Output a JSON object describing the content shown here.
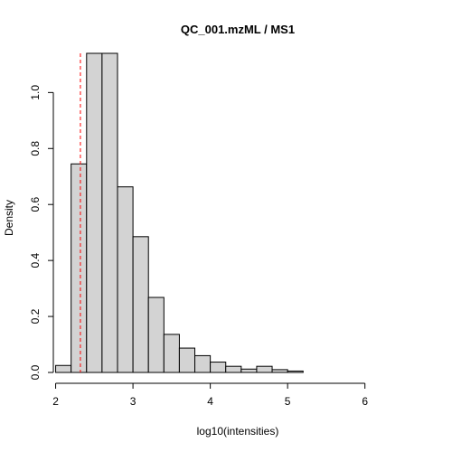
{
  "chart_data": {
    "type": "bar",
    "title": "QC_001.mzML / MS1",
    "xlabel": "log10(intensities)",
    "ylabel": "Density",
    "xlim": [
      1.97,
      6.6
    ],
    "ylim": [
      0,
      1.14
    ],
    "x_ticks": [
      2,
      3,
      4,
      5,
      6
    ],
    "y_ticks": [
      0.0,
      0.2,
      0.4,
      0.6,
      0.8,
      1.0
    ],
    "x_tick_labels": [
      "2",
      "3",
      "4",
      "5",
      "6"
    ],
    "y_tick_labels": [
      "0.0",
      "0.2",
      "0.4",
      "0.6",
      "0.8",
      "1.0"
    ],
    "bin_width": 0.2,
    "bins": [
      {
        "start": 2.0,
        "value": 0.025
      },
      {
        "start": 2.2,
        "value": 0.745
      },
      {
        "start": 2.4,
        "value": 1.14
      },
      {
        "start": 2.6,
        "value": 1.14
      },
      {
        "start": 2.8,
        "value": 0.663
      },
      {
        "start": 3.0,
        "value": 0.485
      },
      {
        "start": 3.2,
        "value": 0.268
      },
      {
        "start": 3.4,
        "value": 0.136
      },
      {
        "start": 3.6,
        "value": 0.087
      },
      {
        "start": 3.8,
        "value": 0.06
      },
      {
        "start": 4.0,
        "value": 0.037
      },
      {
        "start": 4.2,
        "value": 0.022
      },
      {
        "start": 4.4,
        "value": 0.012
      },
      {
        "start": 4.6,
        "value": 0.022
      },
      {
        "start": 4.8,
        "value": 0.01
      },
      {
        "start": 5.0,
        "value": 0.005
      },
      {
        "start": 5.2,
        "value": 0.0
      },
      {
        "start": 5.4,
        "value": 0.0
      },
      {
        "start": 5.6,
        "value": 0.0
      },
      {
        "start": 5.8,
        "value": 0.0
      },
      {
        "start": 6.0,
        "value": 0.0
      },
      {
        "start": 6.2,
        "value": 0.0
      },
      {
        "start": 6.4,
        "value": 0.0
      }
    ],
    "reference_line": {
      "x": 2.32,
      "color": "#ff0000",
      "style": "dashed"
    },
    "bar_color": "#d3d3d3",
    "grid": false,
    "legend": "none"
  }
}
